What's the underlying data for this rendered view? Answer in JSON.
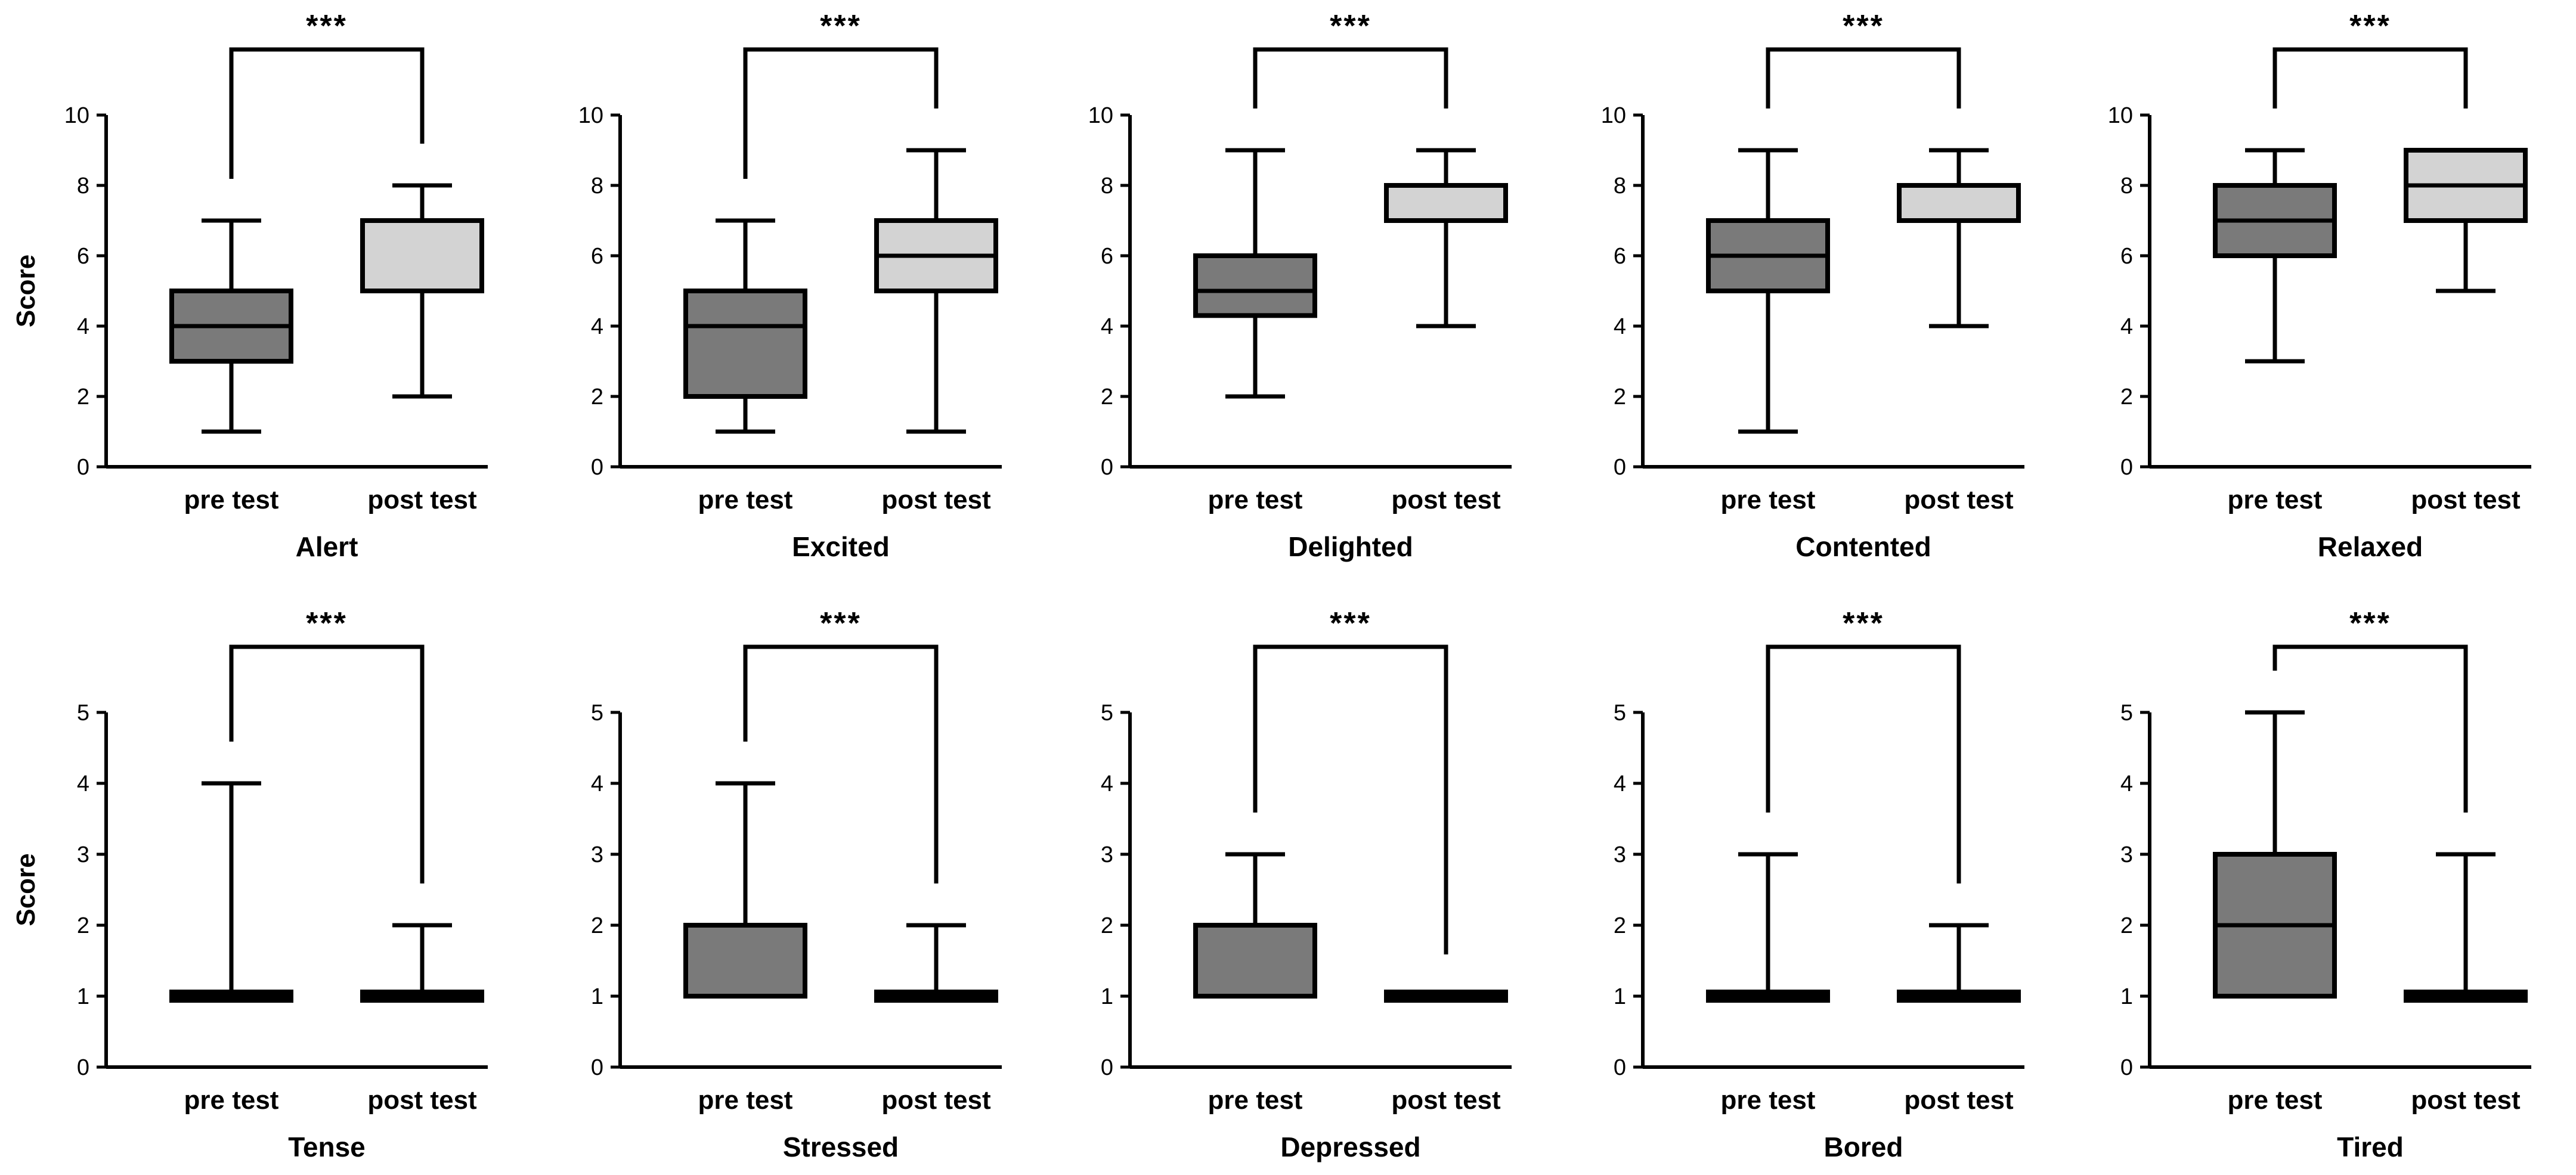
{
  "chart_data": [
    {
      "type": "box",
      "title": "Alert",
      "ylabel": "Score",
      "ylim": [
        0,
        10
      ],
      "yticks": [
        0,
        2,
        4,
        6,
        8,
        10
      ],
      "categories": [
        "pre test",
        "post test"
      ],
      "boxes": [
        {
          "min": 1,
          "q1": 3,
          "median": 4,
          "q3": 5,
          "max": 7
        },
        {
          "min": 2,
          "q1": 5,
          "median": 5,
          "q3": 7,
          "max": 8
        }
      ],
      "colors": [
        "#7a7a7a",
        "#d3d3d3"
      ],
      "significance": "***"
    },
    {
      "type": "box",
      "title": "Excited",
      "ylabel": "",
      "ylim": [
        0,
        10
      ],
      "yticks": [
        0,
        2,
        4,
        6,
        8,
        10
      ],
      "categories": [
        "pre test",
        "post test"
      ],
      "boxes": [
        {
          "min": 1,
          "q1": 2,
          "median": 4,
          "q3": 5,
          "max": 7
        },
        {
          "min": 1,
          "q1": 5,
          "median": 6,
          "q3": 7,
          "max": 9
        }
      ],
      "colors": [
        "#7a7a7a",
        "#d3d3d3"
      ],
      "significance": "***"
    },
    {
      "type": "box",
      "title": "Delighted",
      "ylabel": "",
      "ylim": [
        0,
        10
      ],
      "yticks": [
        0,
        2,
        4,
        6,
        8,
        10
      ],
      "categories": [
        "pre test",
        "post test"
      ],
      "boxes": [
        {
          "min": 2,
          "q1": 4.3,
          "median": 5,
          "q3": 6,
          "max": 9
        },
        {
          "min": 4,
          "q1": 7,
          "median": 7,
          "q3": 8,
          "max": 9
        }
      ],
      "colors": [
        "#7a7a7a",
        "#d3d3d3"
      ],
      "significance": "***"
    },
    {
      "type": "box",
      "title": "Contented",
      "ylabel": "",
      "ylim": [
        0,
        10
      ],
      "yticks": [
        0,
        2,
        4,
        6,
        8,
        10
      ],
      "categories": [
        "pre test",
        "post test"
      ],
      "boxes": [
        {
          "min": 1,
          "q1": 5,
          "median": 6,
          "q3": 7,
          "max": 9
        },
        {
          "min": 4,
          "q1": 7,
          "median": 7,
          "q3": 8,
          "max": 9
        }
      ],
      "colors": [
        "#7a7a7a",
        "#d3d3d3"
      ],
      "significance": "***"
    },
    {
      "type": "box",
      "title": "Relaxed",
      "ylabel": "",
      "ylim": [
        0,
        10
      ],
      "yticks": [
        0,
        2,
        4,
        6,
        8,
        10
      ],
      "categories": [
        "pre test",
        "post test"
      ],
      "boxes": [
        {
          "min": 3,
          "q1": 6,
          "median": 7,
          "q3": 8,
          "max": 9
        },
        {
          "min": 5,
          "q1": 7,
          "median": 8,
          "q3": 9,
          "max": 9
        }
      ],
      "colors": [
        "#7a7a7a",
        "#d3d3d3"
      ],
      "significance": "***"
    },
    {
      "type": "box",
      "title": "Tense",
      "ylabel": "Score",
      "ylim": [
        0,
        5
      ],
      "yticks": [
        0,
        1,
        2,
        3,
        4,
        5
      ],
      "categories": [
        "pre test",
        "post test"
      ],
      "boxes": [
        {
          "min": 1,
          "q1": 1,
          "median": 1,
          "q3": 1,
          "max": 4
        },
        {
          "min": 1,
          "q1": 1,
          "median": 1,
          "q3": 1,
          "max": 2
        }
      ],
      "colors": [
        "#7a7a7a",
        "#d3d3d3"
      ],
      "significance": "***"
    },
    {
      "type": "box",
      "title": "Stressed",
      "ylabel": "",
      "ylim": [
        0,
        5
      ],
      "yticks": [
        0,
        1,
        2,
        3,
        4,
        5
      ],
      "categories": [
        "pre test",
        "post test"
      ],
      "boxes": [
        {
          "min": 1,
          "q1": 1,
          "median": 1,
          "q3": 2,
          "max": 4
        },
        {
          "min": 1,
          "q1": 1,
          "median": 1,
          "q3": 1,
          "max": 2
        }
      ],
      "colors": [
        "#7a7a7a",
        "#d3d3d3"
      ],
      "significance": "***"
    },
    {
      "type": "box",
      "title": "Depressed",
      "ylabel": "",
      "ylim": [
        0,
        5
      ],
      "yticks": [
        0,
        1,
        2,
        3,
        4,
        5
      ],
      "categories": [
        "pre test",
        "post test"
      ],
      "boxes": [
        {
          "min": 1,
          "q1": 1,
          "median": 1,
          "q3": 2,
          "max": 3
        },
        {
          "min": 1,
          "q1": 1,
          "median": 1,
          "q3": 1,
          "max": 1
        }
      ],
      "colors": [
        "#7a7a7a",
        "#d3d3d3"
      ],
      "significance": "***"
    },
    {
      "type": "box",
      "title": "Bored",
      "ylabel": "",
      "ylim": [
        0,
        5
      ],
      "yticks": [
        0,
        1,
        2,
        3,
        4,
        5
      ],
      "categories": [
        "pre test",
        "post test"
      ],
      "boxes": [
        {
          "min": 1,
          "q1": 1,
          "median": 1,
          "q3": 1,
          "max": 3
        },
        {
          "min": 1,
          "q1": 1,
          "median": 1,
          "q3": 1,
          "max": 2
        }
      ],
      "colors": [
        "#7a7a7a",
        "#d3d3d3"
      ],
      "significance": "***"
    },
    {
      "type": "box",
      "title": "Tired",
      "ylabel": "",
      "ylim": [
        0,
        5
      ],
      "yticks": [
        0,
        1,
        2,
        3,
        4,
        5
      ],
      "categories": [
        "pre test",
        "post test"
      ],
      "boxes": [
        {
          "min": 1,
          "q1": 1,
          "median": 2,
          "q3": 3,
          "max": 5
        },
        {
          "min": 1,
          "q1": 1,
          "median": 1,
          "q3": 1,
          "max": 3
        }
      ],
      "colors": [
        "#7a7a7a",
        "#d3d3d3"
      ],
      "significance": "***"
    }
  ]
}
